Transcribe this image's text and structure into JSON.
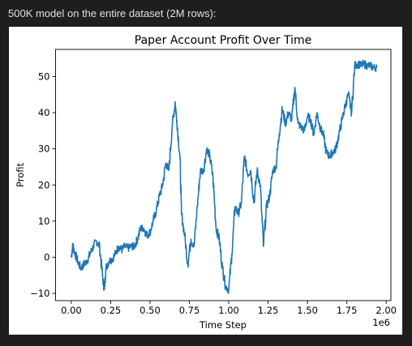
{
  "output_caption": "500K model on the entire dataset (2M rows):",
  "chart_data": {
    "type": "line",
    "title": "Paper Account Profit Over Time",
    "xlabel": "Time Step",
    "ylabel": "Profit",
    "x_offset_label": "1e6",
    "xlim": [
      -0.1,
      2.03
    ],
    "ylim": [
      -12,
      57.5
    ],
    "x_ticks": [
      0.0,
      0.25,
      0.5,
      0.75,
      1.0,
      1.25,
      1.5,
      1.75,
      2.0
    ],
    "x_tick_labels": [
      "0.00",
      "0.25",
      "0.50",
      "0.75",
      "1.00",
      "1.25",
      "1.50",
      "1.75",
      "2.00"
    ],
    "y_ticks": [
      -10,
      0,
      10,
      20,
      30,
      40,
      50
    ],
    "y_tick_labels": [
      "−10",
      "0",
      "10",
      "20",
      "30",
      "40",
      "50"
    ],
    "grid": false,
    "line_color": "#1f77b4",
    "series": [
      {
        "x": [
          0.0,
          0.01,
          0.02,
          0.04,
          0.06,
          0.08,
          0.1,
          0.12,
          0.14,
          0.16,
          0.18,
          0.2,
          0.21,
          0.22,
          0.24,
          0.26,
          0.28,
          0.3,
          0.32,
          0.34,
          0.36,
          0.38,
          0.4,
          0.42,
          0.44,
          0.46,
          0.48,
          0.5,
          0.52,
          0.54,
          0.56,
          0.58,
          0.6,
          0.62,
          0.64,
          0.66,
          0.67,
          0.69,
          0.7,
          0.72,
          0.74,
          0.76,
          0.78,
          0.8,
          0.82,
          0.84,
          0.86,
          0.88,
          0.9,
          0.92,
          0.94,
          0.96,
          0.98,
          1.0,
          1.02,
          1.04,
          1.06,
          1.08,
          1.1,
          1.12,
          1.14,
          1.16,
          1.18,
          1.2,
          1.22,
          1.24,
          1.26,
          1.28,
          1.3,
          1.32,
          1.34,
          1.36,
          1.38,
          1.4,
          1.42,
          1.44,
          1.46,
          1.48,
          1.5,
          1.52,
          1.54,
          1.56,
          1.58,
          1.6,
          1.62,
          1.64,
          1.66,
          1.68,
          1.7,
          1.72,
          1.74,
          1.76,
          1.78,
          1.8,
          1.82,
          1.84,
          1.86,
          1.88,
          1.9,
          1.92,
          1.94
        ],
        "y": [
          0,
          3.5,
          1.5,
          -1,
          -3,
          -2,
          -1,
          1,
          3,
          4.5,
          3,
          -6,
          -9,
          -3,
          -1,
          -0.5,
          1,
          3,
          2,
          3,
          2.5,
          3,
          3,
          5,
          8,
          8,
          6,
          7,
          10,
          13,
          17,
          20,
          26,
          24,
          36,
          43,
          38,
          28,
          12,
          6,
          -2,
          5,
          3,
          14,
          24,
          24,
          30,
          28,
          22,
          8,
          5,
          -3,
          -8,
          -9,
          1,
          14,
          12,
          15,
          28,
          23,
          24,
          15,
          24,
          20,
          3,
          14,
          17,
          24,
          25,
          34,
          41,
          37,
          40,
          38,
          47,
          37,
          36,
          35,
          39,
          38,
          34,
          40,
          36,
          34,
          29,
          28,
          29,
          30,
          34,
          38,
          42,
          45,
          40,
          53,
          53.5,
          53,
          53.5,
          53,
          53,
          52.5,
          52.5
        ]
      }
    ]
  }
}
